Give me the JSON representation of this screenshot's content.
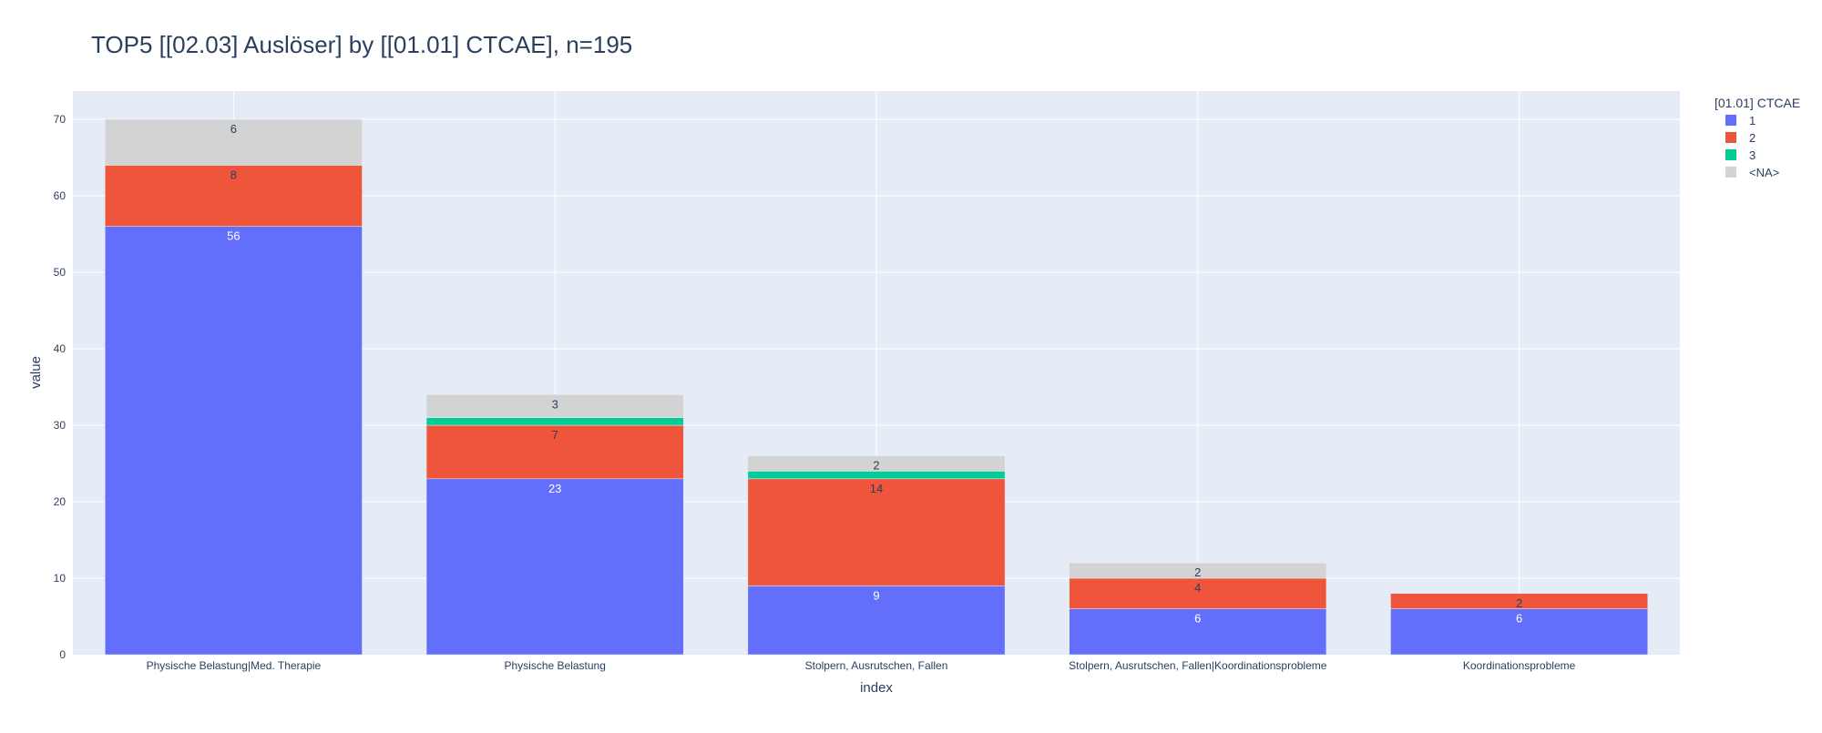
{
  "chart_data": {
    "type": "bar",
    "stacked": true,
    "title": "TOP5 [[02.03] Auslöser] by [[01.01] CTCAE], n=195",
    "xlabel": "index",
    "ylabel": "value",
    "ylim": [
      0,
      73.7
    ],
    "yticks": [
      0,
      10,
      20,
      30,
      40,
      50,
      60,
      70
    ],
    "grid": true,
    "legend_title": "[01.01] CTCAE",
    "legend_position": "top-right",
    "categories": [
      "Physische Belastung|Med. Therapie",
      "Physische Belastung",
      "Stolpern, Ausrutschen, Fallen",
      "Stolpern, Ausrutschen, Fallen|Koordinationsprobleme",
      "Koordinationsprobleme"
    ],
    "series": [
      {
        "name": "1",
        "color": "#636efa",
        "label_color": "#ffffff",
        "values": [
          56,
          23,
          9,
          6,
          6
        ],
        "labels": [
          "56",
          "23",
          "9",
          "6",
          "6"
        ]
      },
      {
        "name": "2",
        "color": "#ef553b",
        "label_color": "#2a3f5f",
        "values": [
          8,
          7,
          14,
          4,
          2
        ],
        "labels": [
          "8",
          "7",
          "14",
          "4",
          "2"
        ]
      },
      {
        "name": "3",
        "color": "#00cc96",
        "label_color": "#2a3f5f",
        "values": [
          0,
          1,
          1,
          0,
          0
        ],
        "labels": [
          "",
          "",
          "",
          "",
          ""
        ]
      },
      {
        "name": "<NA>",
        "color": "#d3d3d3",
        "label_color": "#2a3f5f",
        "values": [
          6,
          3,
          2,
          2,
          0
        ],
        "labels": [
          "6",
          "3",
          "2",
          "2",
          ""
        ]
      }
    ]
  }
}
